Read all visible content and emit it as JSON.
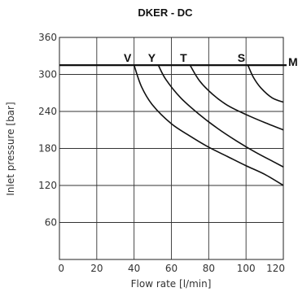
{
  "chart_data": {
    "type": "line",
    "title": "DKER - DC",
    "xlabel": "Flow rate [l/min]",
    "ylabel": "Inlet pressure [bar]",
    "xlim": [
      0,
      120
    ],
    "ylim": [
      0,
      360
    ],
    "x_ticks": [
      "0",
      "20",
      "40",
      "60",
      "80",
      "100",
      "120"
    ],
    "y_ticks": [
      "60",
      "120",
      "180",
      "240",
      "300",
      "360"
    ],
    "grid": true,
    "max_pressure_line": {
      "label": "M",
      "y": 315
    },
    "series": [
      {
        "name": "V",
        "points": [
          [
            0,
            315
          ],
          [
            40,
            315
          ],
          [
            44,
            280
          ],
          [
            50,
            250
          ],
          [
            60,
            220
          ],
          [
            70,
            200
          ],
          [
            80,
            182
          ],
          [
            90,
            167
          ],
          [
            100,
            152
          ],
          [
            110,
            138
          ],
          [
            120,
            120
          ]
        ]
      },
      {
        "name": "Y",
        "points": [
          [
            0,
            315
          ],
          [
            53,
            315
          ],
          [
            57,
            292
          ],
          [
            65,
            262
          ],
          [
            75,
            235
          ],
          [
            85,
            212
          ],
          [
            95,
            192
          ],
          [
            105,
            174
          ],
          [
            115,
            158
          ],
          [
            120,
            150
          ]
        ]
      },
      {
        "name": "T",
        "points": [
          [
            0,
            315
          ],
          [
            70,
            315
          ],
          [
            75,
            290
          ],
          [
            82,
            268
          ],
          [
            90,
            250
          ],
          [
            100,
            235
          ],
          [
            110,
            222
          ],
          [
            120,
            210
          ]
        ]
      },
      {
        "name": "S",
        "points": [
          [
            0,
            315
          ],
          [
            101,
            315
          ],
          [
            104,
            295
          ],
          [
            108,
            278
          ],
          [
            114,
            262
          ],
          [
            120,
            255
          ]
        ]
      }
    ]
  }
}
